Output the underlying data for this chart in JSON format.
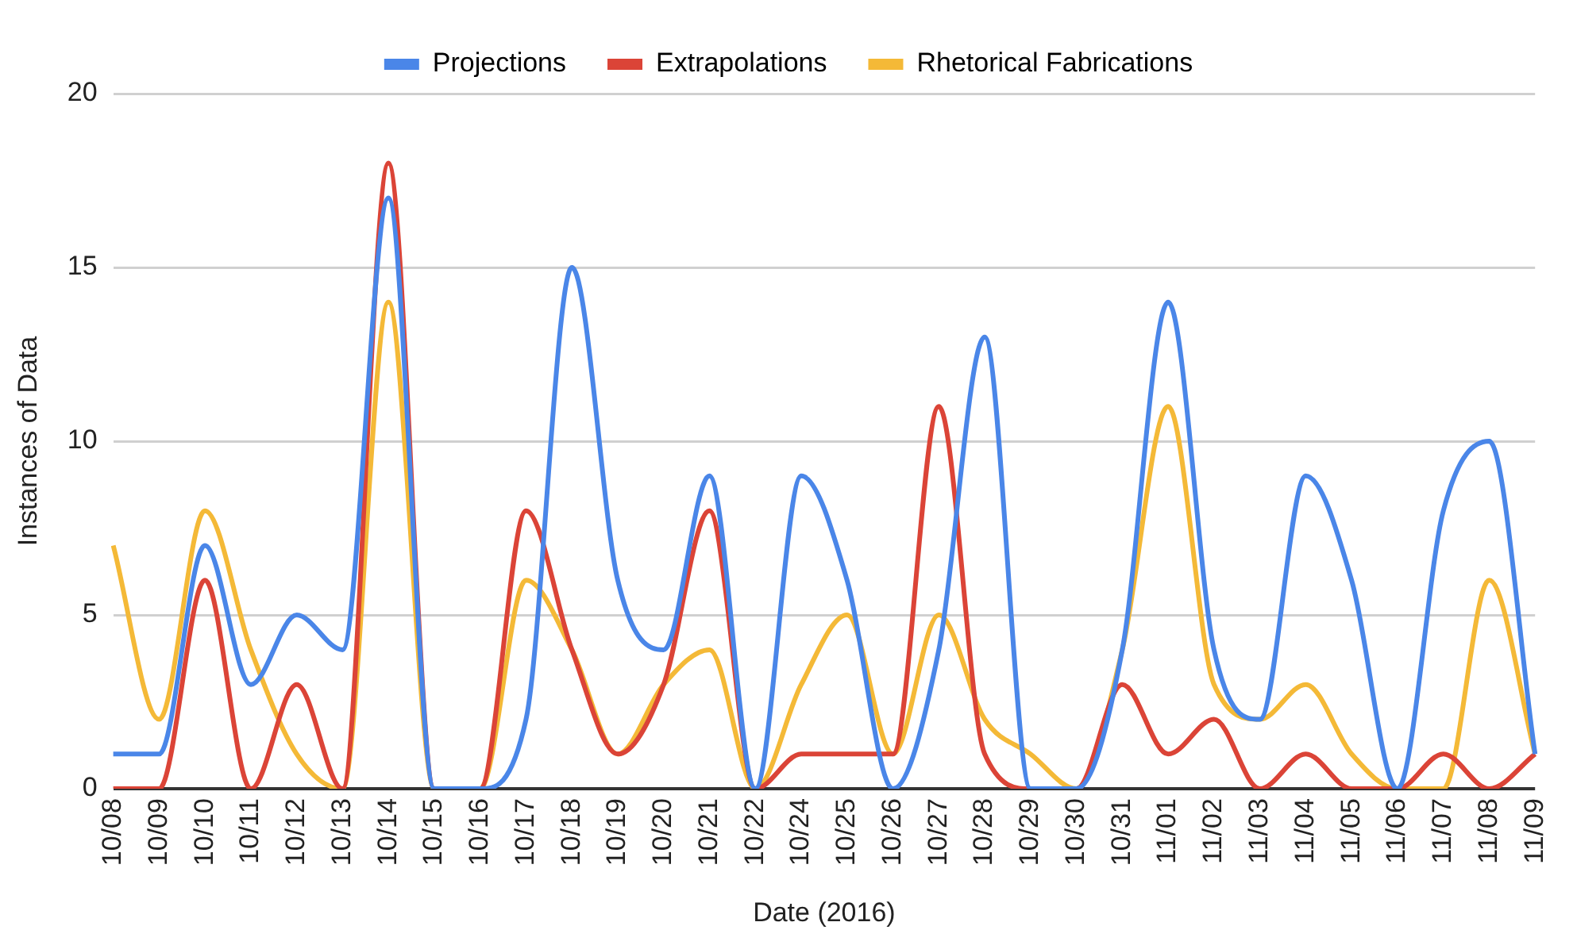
{
  "chart_data": {
    "type": "line",
    "xlabel": "Date (2016)",
    "ylabel": "Instances of Data",
    "categories": [
      "10/08",
      "10/09",
      "10/10",
      "10/11",
      "10/12",
      "10/13",
      "10/14",
      "10/15",
      "10/16",
      "10/17",
      "10/18",
      "10/19",
      "10/20",
      "10/21",
      "10/22",
      "10/24",
      "10/25",
      "10/26",
      "10/27",
      "10/28",
      "10/29",
      "10/30",
      "10/31",
      "11/01",
      "11/02",
      "11/03",
      "11/04",
      "11/05",
      "11/06",
      "11/07",
      "11/08",
      "11/09"
    ],
    "series": [
      {
        "name": "Projections",
        "color": "#4a86e8",
        "values": [
          1,
          1,
          7,
          3,
          5,
          4,
          17,
          0,
          0,
          2,
          15,
          6,
          4,
          9,
          0,
          9,
          6,
          0,
          4,
          13,
          0,
          0,
          4,
          14,
          4,
          2,
          9,
          6,
          0,
          8,
          10,
          1
        ]
      },
      {
        "name": "Extrapolations",
        "color": "#db4437",
        "values": [
          0,
          0,
          6,
          0,
          3,
          0,
          18,
          0,
          0,
          8,
          4,
          1,
          3,
          8,
          0,
          1,
          1,
          1,
          11,
          1,
          0,
          0,
          3,
          1,
          2,
          0,
          1,
          0,
          0,
          1,
          0,
          1
        ]
      },
      {
        "name": "Rhetorical Fabrications",
        "color": "#f4b937",
        "values": [
          7,
          2,
          8,
          4,
          1,
          0,
          14,
          0,
          0,
          6,
          4,
          1,
          3,
          4,
          0,
          3,
          5,
          1,
          5,
          2,
          1,
          0,
          4,
          11,
          3,
          2,
          3,
          1,
          0,
          0,
          6,
          1
        ]
      }
    ],
    "ylim": [
      0,
      20
    ],
    "yticks": [
      0,
      5,
      10,
      15,
      20
    ],
    "grid": "y",
    "legend": "top",
    "marker": "none",
    "line_style": "solid"
  }
}
